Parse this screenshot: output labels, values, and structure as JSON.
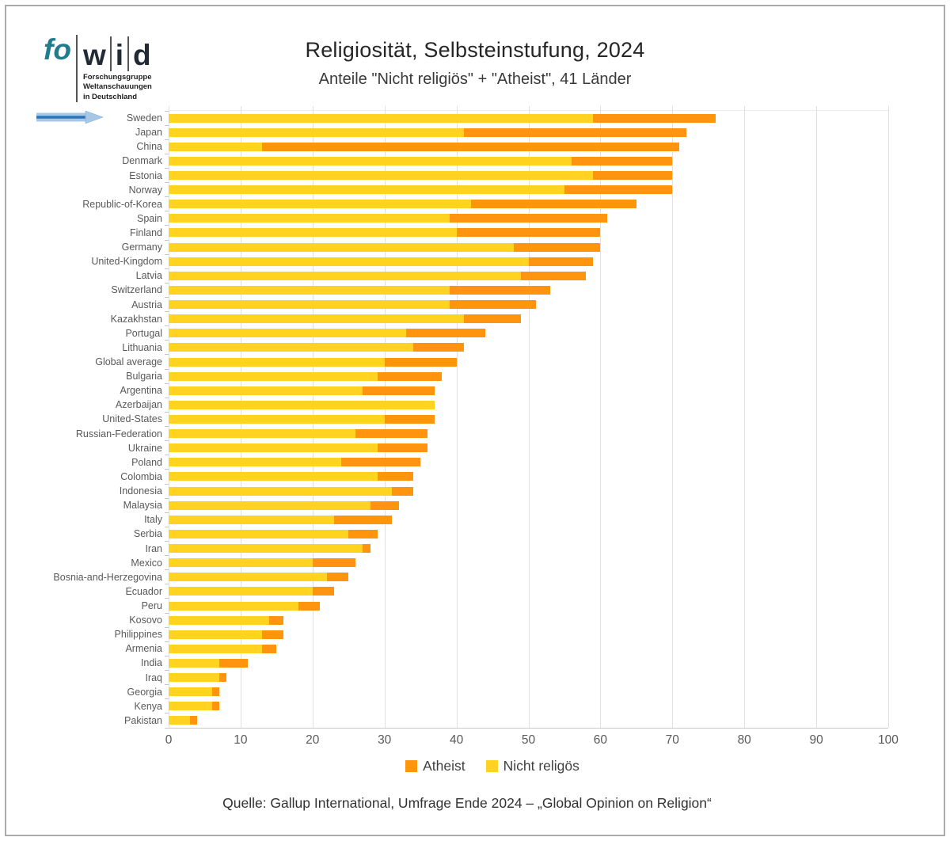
{
  "logo": {
    "fo": "fo",
    "w": "w",
    "i": "i",
    "d": "d",
    "tagline_lines": [
      "Forschungsgruppe",
      "Weltanschauungen",
      "in Deutschland"
    ]
  },
  "header": {
    "title": "Religiosität, Selbsteinstufung, 2024",
    "subtitle": "Anteile \"Nicht religiös\" + \"Atheist\", 41 Länder"
  },
  "chart_data": {
    "type": "bar",
    "orientation": "horizontal",
    "stacked": true,
    "title": "Religiosität, Selbsteinstufung, 2024",
    "subtitle": "Anteile \"Nicht religiös\" + \"Atheist\", 41 Länder",
    "xlabel": "",
    "ylabel": "",
    "xlim": [
      0,
      100
    ],
    "xticks": [
      0,
      10,
      20,
      30,
      40,
      50,
      60,
      70,
      80,
      90,
      100
    ],
    "grid": "vertical",
    "legend_position": "bottom",
    "categories": [
      "Sweden",
      "Japan",
      "China",
      "Denmark",
      "Estonia",
      "Norway",
      "Republic-of-Korea",
      "Spain",
      "Finland",
      "Germany",
      "United-Kingdom",
      "Latvia",
      "Switzerland",
      "Austria",
      "Kazakhstan",
      "Portugal",
      "Lithuania",
      "Global average",
      "Bulgaria",
      "Argentina",
      "Azerbaijan",
      "United-States",
      "Russian-Federation",
      "Ukraine",
      "Poland",
      "Colombia",
      "Indonesia",
      "Malaysia",
      "Italy",
      "Serbia",
      "Iran",
      "Mexico",
      "Bosnia-and-Herzegovina",
      "Ecuador",
      "Peru",
      "Kosovo",
      "Philippines",
      "Armenia",
      "India",
      "Iraq",
      "Georgia",
      "Kenya",
      "Pakistan"
    ],
    "series": [
      {
        "name": "Nicht religös",
        "color": "#FFD320",
        "values": [
          59,
          41,
          13,
          56,
          59,
          55,
          42,
          39,
          40,
          48,
          50,
          49,
          39,
          39,
          41,
          33,
          34,
          30,
          29,
          27,
          37,
          30,
          26,
          29,
          24,
          29,
          31,
          28,
          23,
          25,
          27,
          20,
          22,
          20,
          18,
          14,
          13,
          13,
          7,
          7,
          6,
          6,
          3
        ]
      },
      {
        "name": "Atheist",
        "color": "#FF950E",
        "values": [
          17,
          31,
          58,
          14,
          11,
          15,
          23,
          22,
          20,
          12,
          9,
          9,
          14,
          12,
          8,
          11,
          7,
          10,
          9,
          10,
          0,
          7,
          10,
          7,
          11,
          5,
          3,
          4,
          8,
          4,
          1,
          6,
          3,
          3,
          3,
          2,
          3,
          2,
          4,
          1,
          1,
          1,
          1
        ]
      }
    ],
    "annotation": {
      "arrow_points_to": "Sweden"
    }
  },
  "legend": {
    "items": [
      {
        "label": "Atheist",
        "color": "#FF950E"
      },
      {
        "label": "Nicht religös",
        "color": "#FFD320"
      }
    ]
  },
  "source": "Quelle: Gallup International, Umfrage Ende 2024 – „Global Opinion on Religion“"
}
